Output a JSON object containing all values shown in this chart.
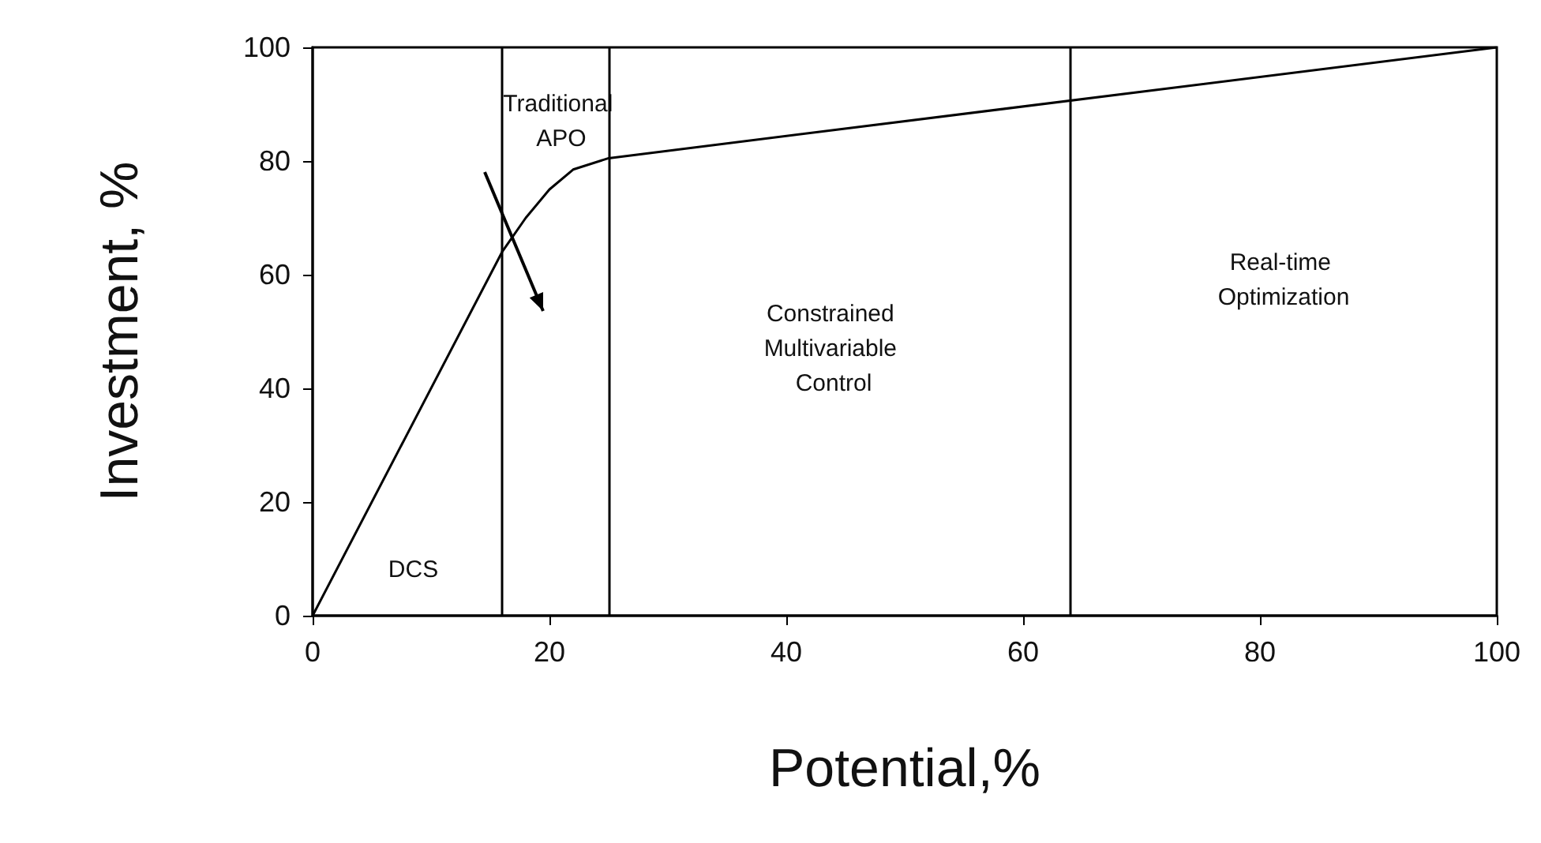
{
  "chart_data": {
    "type": "line",
    "xlabel": "Potential,%",
    "ylabel": "Investment, %",
    "x": [
      0,
      16,
      18,
      20,
      22,
      25,
      100
    ],
    "series": [
      {
        "color": "#000000",
        "values": [
          0,
          64,
          70,
          75,
          78.5,
          80.5,
          100
        ]
      }
    ],
    "xlim": [
      0,
      100
    ],
    "xticks": [
      0,
      20,
      40,
      60,
      80,
      100
    ],
    "ylim": [
      0,
      100
    ],
    "yticks": [
      0,
      20,
      40,
      60,
      80,
      100
    ],
    "ref_lines": [
      {
        "axis": "x",
        "value": 16,
        "color": "#000000"
      },
      {
        "axis": "x",
        "value": 25,
        "color": "#000000"
      },
      {
        "axis": "x",
        "value": 64,
        "color": "#000000"
      }
    ],
    "annotations": [
      "Traditional APO",
      "DCS",
      "Constrained Multivariable Control",
      "Real-time Optimization"
    ],
    "grid": false,
    "marker": "none",
    "line_style": "solid"
  }
}
